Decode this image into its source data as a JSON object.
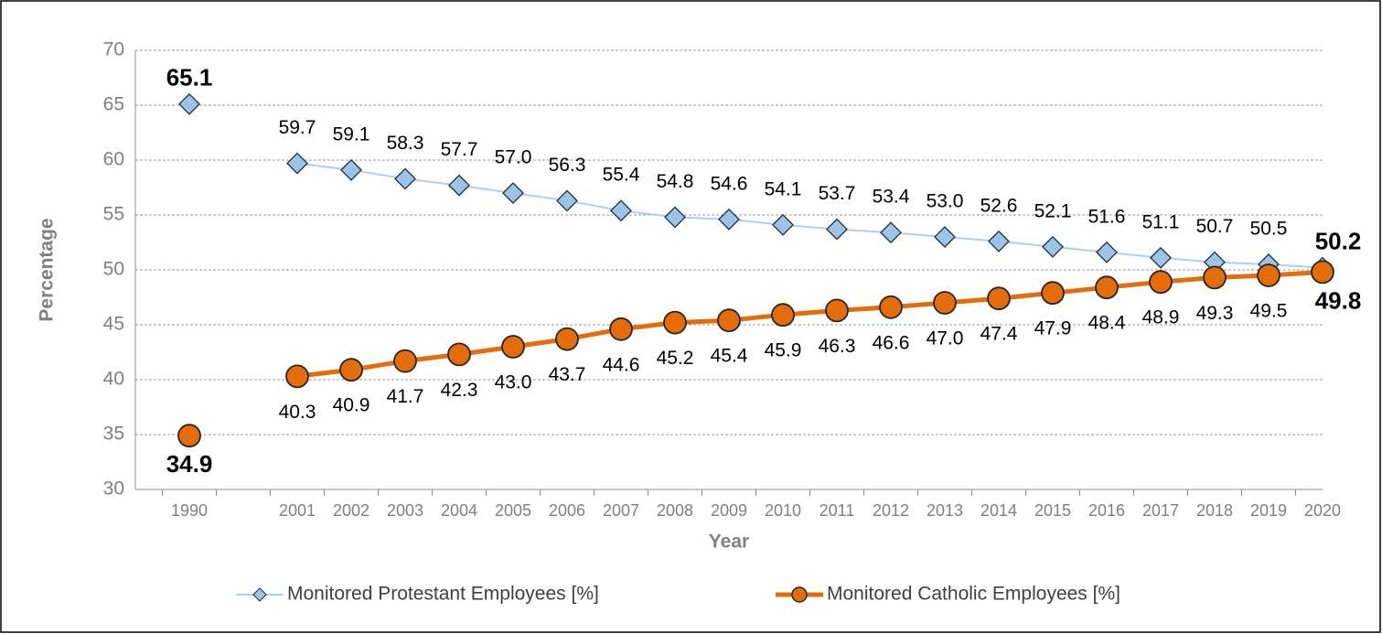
{
  "chart_data": {
    "type": "line",
    "x_label": "Year",
    "y_label": "Percentage",
    "categories": [
      "1990",
      null,
      "2001",
      "2002",
      "2003",
      "2004",
      "2005",
      "2006",
      "2007",
      "2008",
      "2009",
      "2010",
      "2011",
      "2012",
      "2013",
      "2014",
      "2015",
      "2016",
      "2017",
      "2018",
      "2019",
      "2020"
    ],
    "series": [
      {
        "name": "Monitored Protestant Employees [%]",
        "color": "#9dc3e6",
        "line_color": "#a9cff2",
        "marker": "diamond",
        "values": [
          65.1,
          null,
          59.7,
          59.1,
          58.3,
          57.7,
          57.0,
          56.3,
          55.4,
          54.8,
          54.6,
          54.1,
          53.7,
          53.4,
          53.0,
          52.6,
          52.1,
          51.6,
          51.1,
          50.7,
          50.5,
          50.2
        ],
        "value_labels": [
          "65.1",
          null,
          "59.7",
          "59.1",
          "58.3",
          "57.7",
          "57.0",
          "56.3",
          "55.4",
          "54.8",
          "54.6",
          "54.1",
          "53.7",
          "53.4",
          "53.0",
          "52.6",
          "52.1",
          "51.6",
          "51.1",
          "50.7",
          "50.5",
          "50.2"
        ]
      },
      {
        "name": "Monitored Catholic Employees [%]",
        "color": "#e46c0a",
        "line_color": "#e46c0a",
        "marker": "circle",
        "values": [
          34.9,
          null,
          40.3,
          40.9,
          41.7,
          42.3,
          43.0,
          43.7,
          44.6,
          45.2,
          45.4,
          45.9,
          46.3,
          46.6,
          47.0,
          47.4,
          47.9,
          48.4,
          48.9,
          49.3,
          49.5,
          49.8
        ],
        "value_labels": [
          "34.9",
          null,
          "40.3",
          "40.9",
          "41.7",
          "42.3",
          "43.0",
          "43.7",
          "44.6",
          "45.2",
          "45.4",
          "45.9",
          "46.3",
          "46.6",
          "47.0",
          "47.4",
          "47.9",
          "48.4",
          "48.9",
          "49.3",
          "49.5",
          "49.8"
        ]
      }
    ],
    "ylim": [
      30,
      70
    ],
    "yticks": [
      30,
      35,
      40,
      45,
      50,
      55,
      60,
      65,
      70
    ],
    "grid": true,
    "legend": "bottom"
  }
}
